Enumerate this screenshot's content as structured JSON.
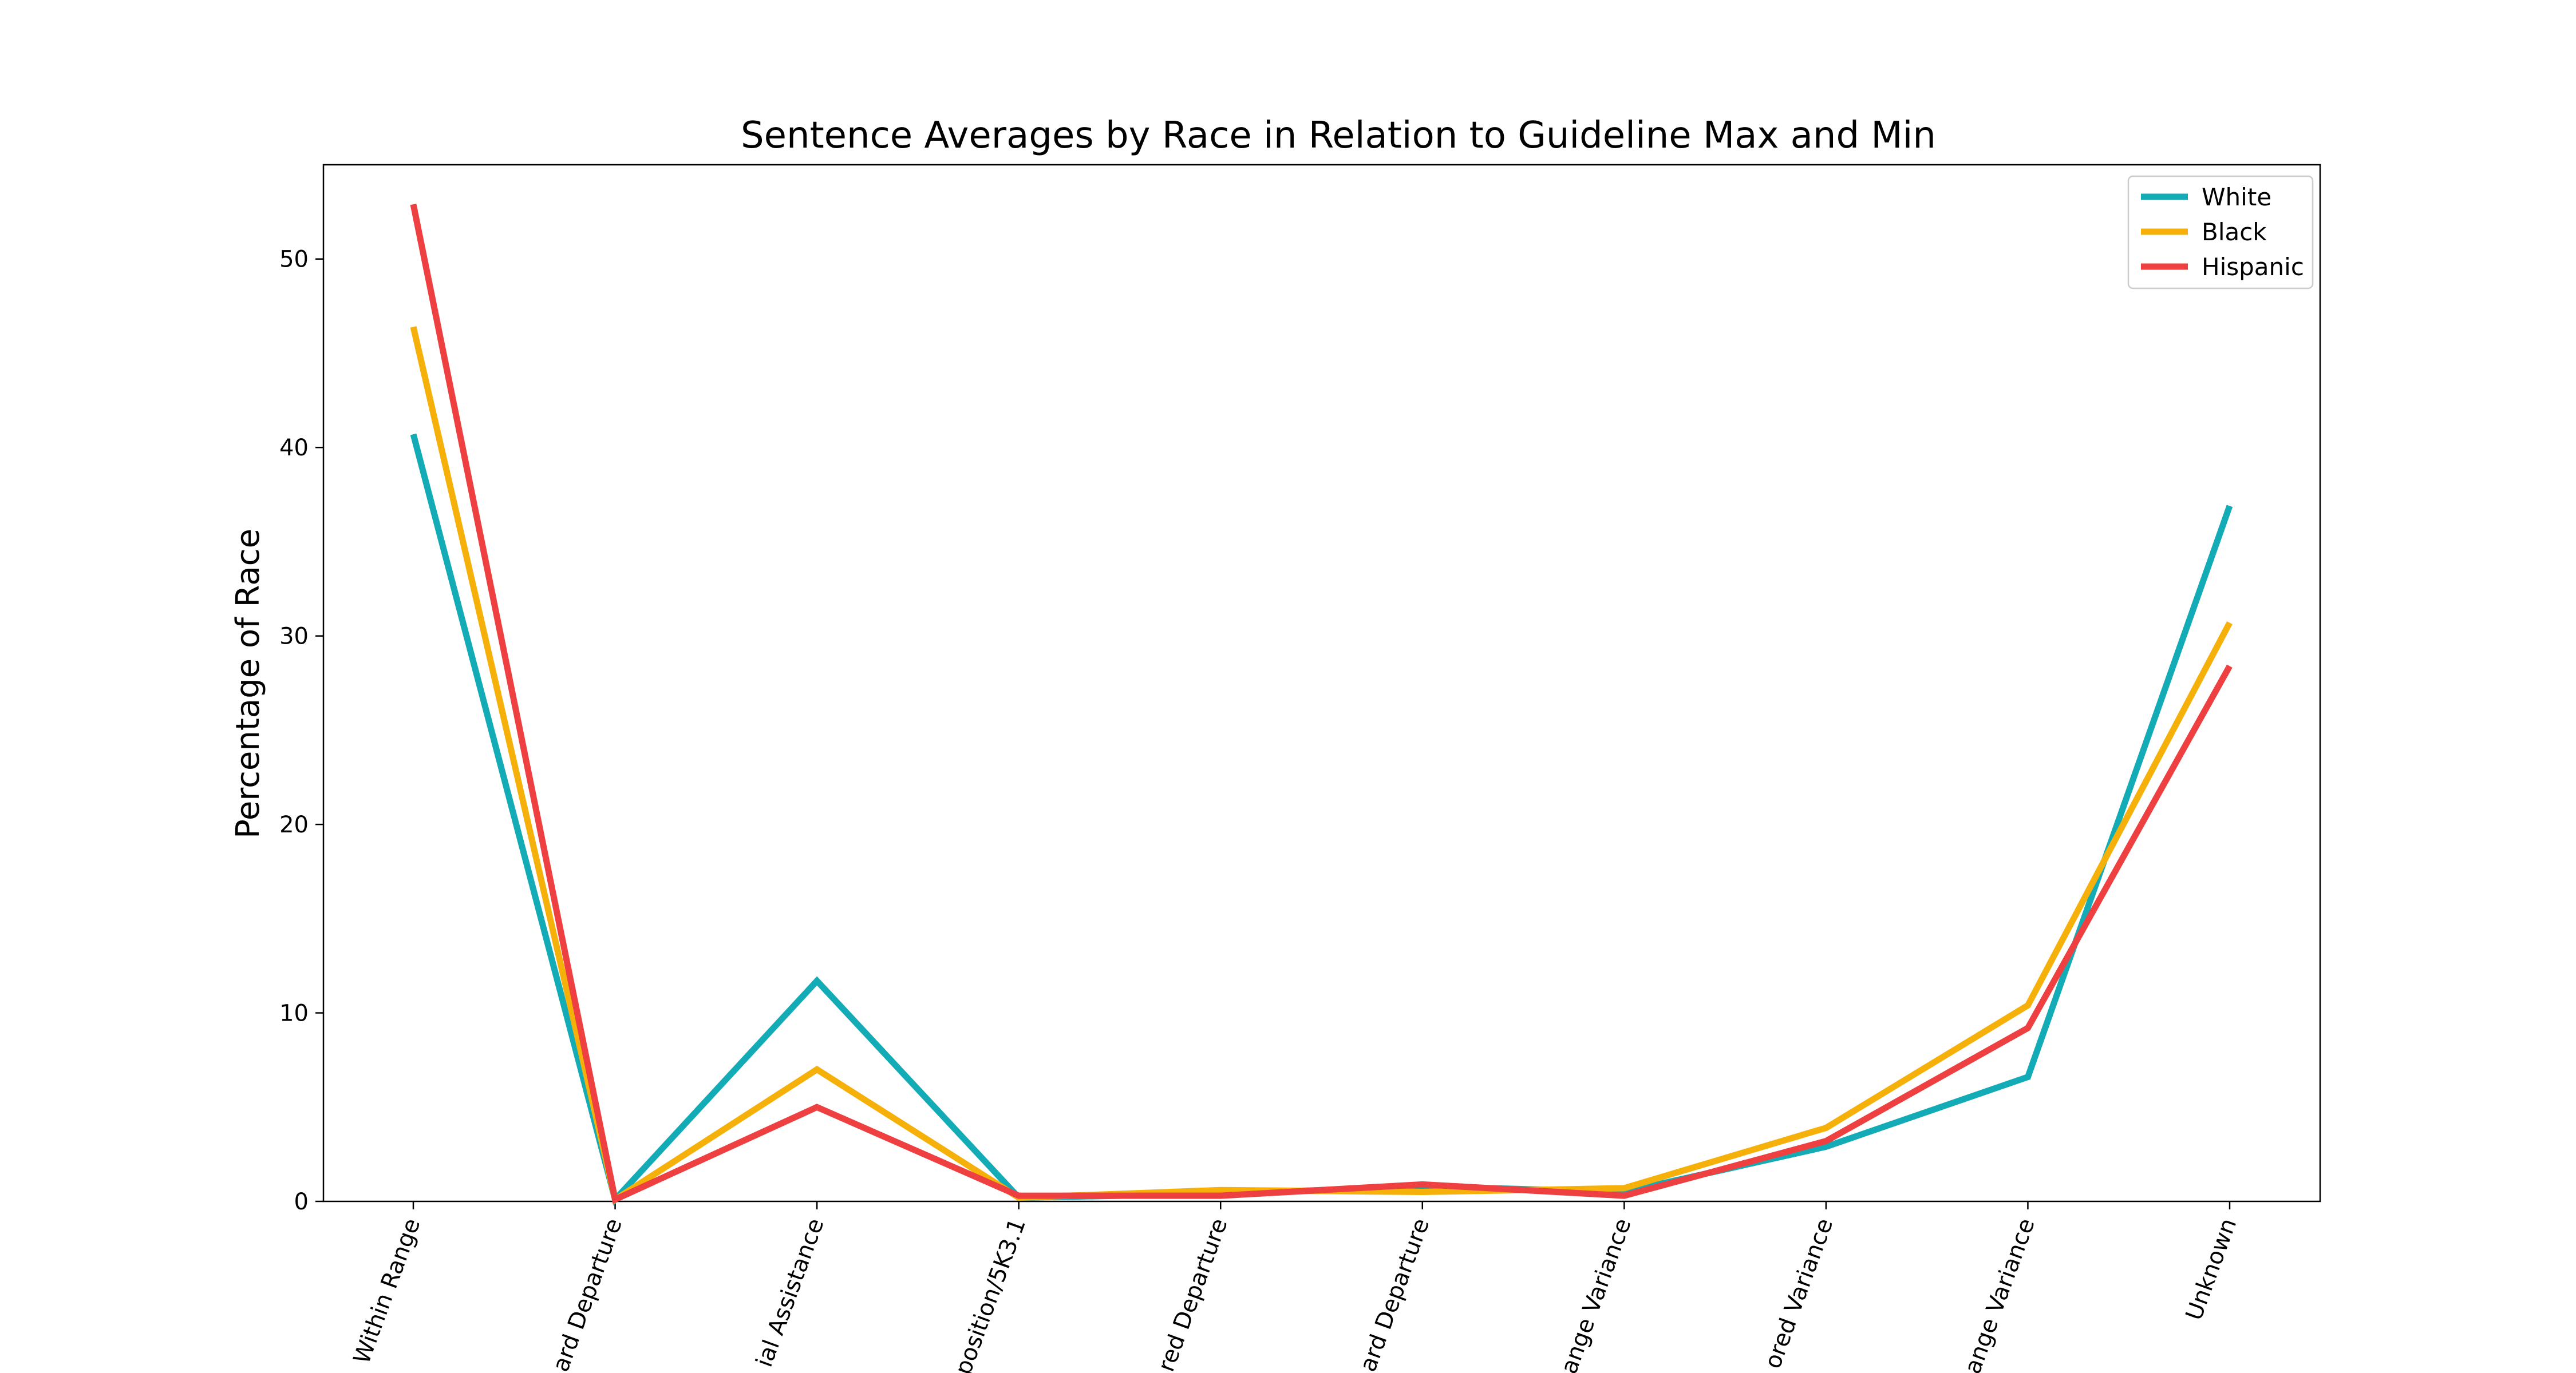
{
  "chart_data": {
    "type": "line",
    "title": "Sentence Averages by Race in Relation to Guideline Max and Min",
    "xlabel": "",
    "ylabel": "Percentage of Race",
    "ylim": [
      0,
      55
    ],
    "yticks": [
      0,
      10,
      20,
      30,
      40,
      50
    ],
    "categories": [
      "Within Range",
      "ard Departure",
      "ial Assistance",
      "position/5K3.1",
      "red Departure",
      "ard Departure",
      "ange Variance",
      "ored Variance",
      "ange Variance",
      "Unknown"
    ],
    "series": [
      {
        "name": "White",
        "color": "#13abb5",
        "values": [
          40.7,
          0.1,
          11.7,
          0.2,
          0.4,
          0.8,
          0.5,
          2.9,
          6.6,
          36.9
        ]
      },
      {
        "name": "Black",
        "color": "#f5b10a",
        "values": [
          46.4,
          0.1,
          7.0,
          0.2,
          0.6,
          0.5,
          0.7,
          3.9,
          10.4,
          30.7
        ]
      },
      {
        "name": "Hispanic",
        "color": "#ee4040",
        "values": [
          52.9,
          0.1,
          5.0,
          0.3,
          0.3,
          0.9,
          0.3,
          3.2,
          9.2,
          28.4
        ]
      }
    ],
    "grid": false,
    "legend_position": "top-right"
  }
}
